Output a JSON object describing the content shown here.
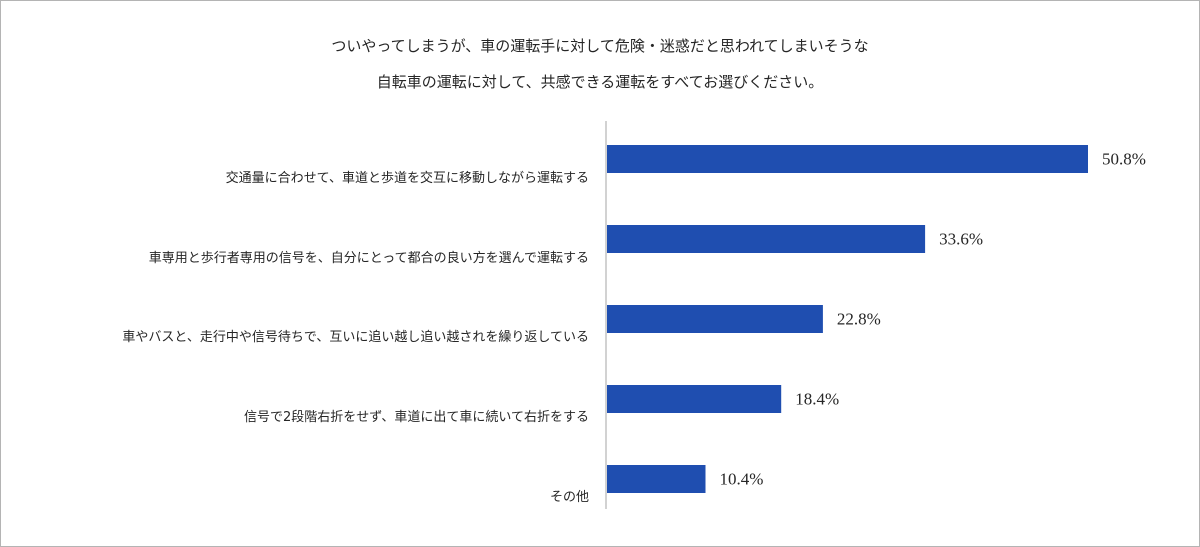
{
  "chart_data": {
    "type": "bar",
    "orientation": "horizontal",
    "title_lines": [
      "ついやってしまうが、車の運転手に対して危険・迷惑だと思われてしまいそうな",
      "自転車の運転に対して、共感できる運転をすべてお選びください。"
    ],
    "categories": [
      "交通量に合わせて、車道と歩道を交互に移動しながら運転する",
      "車専用と歩行者専用の信号を、自分にとって都合の良い方を選んで運転する",
      "車やバスと、走行中や信号待ちで、互いに追い越し追い越されを繰り返している",
      "信号で2段階右折をせず、車道に出て車に続いて右折をする",
      "その他"
    ],
    "values": [
      50.8,
      33.6,
      22.8,
      18.4,
      10.4
    ],
    "value_labels": [
      "50.8%",
      "33.6%",
      "22.8%",
      "18.4%",
      "10.4%"
    ],
    "xlim": [
      0,
      50.8
    ],
    "bar_color": "#1f4eb0",
    "axis_color": "#a6a6a6",
    "grid": false,
    "legend": "none"
  }
}
